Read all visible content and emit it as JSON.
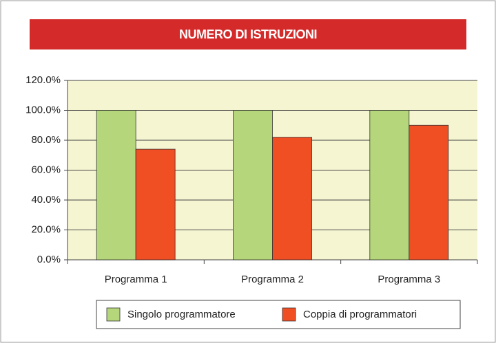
{
  "chart_data": {
    "type": "bar",
    "title": "NUMERO DI ISTRUZIONI",
    "categories": [
      "Programma 1",
      "Programma 2",
      "Programma 3"
    ],
    "series": [
      {
        "name": "Singolo programmatore",
        "color": "#b5d67a",
        "values": [
          100,
          100,
          100
        ]
      },
      {
        "name": "Coppia di programmatori",
        "color": "#f04e23",
        "values": [
          74,
          82,
          90
        ]
      }
    ],
    "ylim": [
      0,
      120
    ],
    "yticks": [
      {
        "value": 0,
        "label": "0.0%"
      },
      {
        "value": 20,
        "label": "20.0%"
      },
      {
        "value": 40,
        "label": "40.0%"
      },
      {
        "value": 60,
        "label": "60.0%"
      },
      {
        "value": 80,
        "label": "80.0%"
      },
      {
        "value": 100,
        "label": "100.0%"
      },
      {
        "value": 120,
        "label": "120.0%"
      }
    ],
    "grid": true,
    "title_color": "#d42a2a",
    "plot_background": "#f5f5d2",
    "legend": "bottom"
  }
}
